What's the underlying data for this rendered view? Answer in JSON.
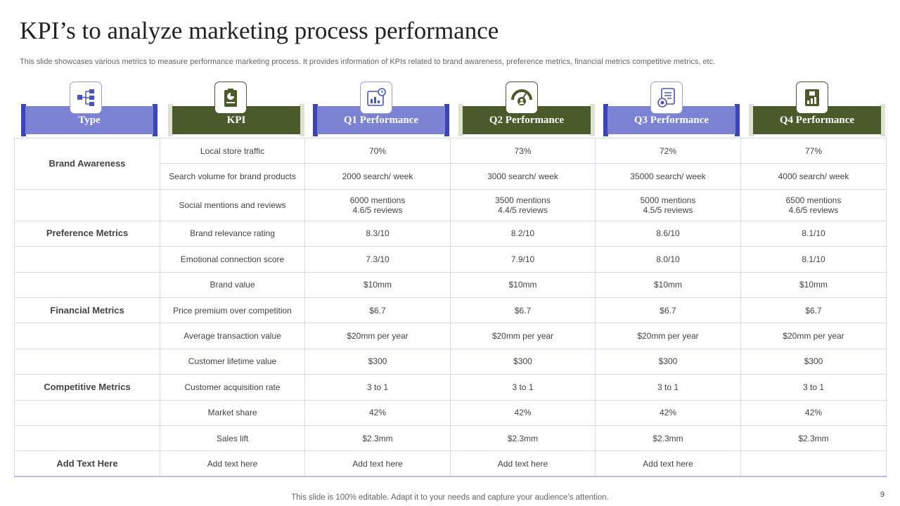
{
  "slide": {
    "title": "KPI’s to analyze marketing process performance",
    "subtitle": "This slide showcases various metrics to measure performance marketing process. It provides information of KPIs related to brand awareness, preference metrics, financial metrics competitive metrics, etc.",
    "footer": "This slide is 100% editable. Adapt it to your needs and capture your audience’s attention.",
    "page_number": "9"
  },
  "colors": {
    "blue": "#7b82d4",
    "blue_dark": "#3c44b8",
    "green": "#4b5a2a",
    "green_light": "#dde3cf"
  },
  "headers": [
    {
      "label": "Type",
      "icon": "hierarchy-icon",
      "style": "blue"
    },
    {
      "label": "KPI",
      "icon": "clipboard-chart-icon",
      "style": "green"
    },
    {
      "label": "Q1 Performance",
      "icon": "report-clock-icon",
      "style": "blue"
    },
    {
      "label": "Q2 Performance",
      "icon": "gauge-person-icon",
      "style": "green"
    },
    {
      "label": "Q3 Performance",
      "icon": "document-coin-icon",
      "style": "blue"
    },
    {
      "label": "Q4 Performance",
      "icon": "money-growth-icon",
      "style": "green"
    }
  ],
  "types": {
    "brand": "Brand Awareness",
    "preference": "Preference Metrics",
    "financial": "Financial Metrics",
    "competitive": "Competitive Metrics",
    "add": "Add Text Here"
  },
  "rows": [
    {
      "kpi": "Local store traffic",
      "q1": "70%",
      "q2": "73%",
      "q3": "72%",
      "q4": "77%"
    },
    {
      "kpi": "Search volume for brand products",
      "q1": "2000 search/ week",
      "q2": "3000 search/ week",
      "q3": "35000 search/ week",
      "q4": "4000 search/ week"
    },
    {
      "kpi": "Social mentions and reviews",
      "q1": [
        "6000 mentions",
        "4.6/5 reviews"
      ],
      "q2": [
        "3500 mentions",
        "4.4/5 reviews"
      ],
      "q3": [
        "5000 mentions",
        "4.5/5 reviews"
      ],
      "q4": [
        "6500 mentions",
        "4.6/5 reviews"
      ]
    },
    {
      "kpi": "Brand relevance rating",
      "q1": "8.3/10",
      "q2": "8.2/10",
      "q3": "8.6/10",
      "q4": "8.1/10"
    },
    {
      "kpi": "Emotional connection score",
      "q1": "7.3/10",
      "q2": "7.9/10",
      "q3": "8.0/10",
      "q4": "8.1/10"
    },
    {
      "kpi": "Brand value",
      "q1": "$10mm",
      "q2": "$10mm",
      "q3": "$10mm",
      "q4": "$10mm"
    },
    {
      "kpi": "Price premium over competition",
      "q1": "$6.7",
      "q2": "$6.7",
      "q3": "$6.7",
      "q4": "$6.7"
    },
    {
      "kpi": "Average transaction value",
      "q1": "$20mm per year",
      "q2": "$20mm per year",
      "q3": "$20mm per year",
      "q4": "$20mm per year"
    },
    {
      "kpi": "Customer lifetime value",
      "q1": "$300",
      "q2": "$300",
      "q3": "$300",
      "q4": "$300"
    },
    {
      "kpi": "Customer acquisition rate",
      "q1": "3 to 1",
      "q2": "3 to 1",
      "q3": "3 to 1",
      "q4": "3 to 1"
    },
    {
      "kpi": "Market share",
      "q1": "42%",
      "q2": "42%",
      "q3": "42%",
      "q4": "42%"
    },
    {
      "kpi": "Sales lift",
      "q1": "$2.3mm",
      "q2": "$2.3mm",
      "q3": "$2.3mm",
      "q4": "$2.3mm"
    },
    {
      "kpi": "Add text here",
      "q1": "Add text here",
      "q2": "Add text here",
      "q3": "Add text here",
      "q4": ""
    }
  ]
}
